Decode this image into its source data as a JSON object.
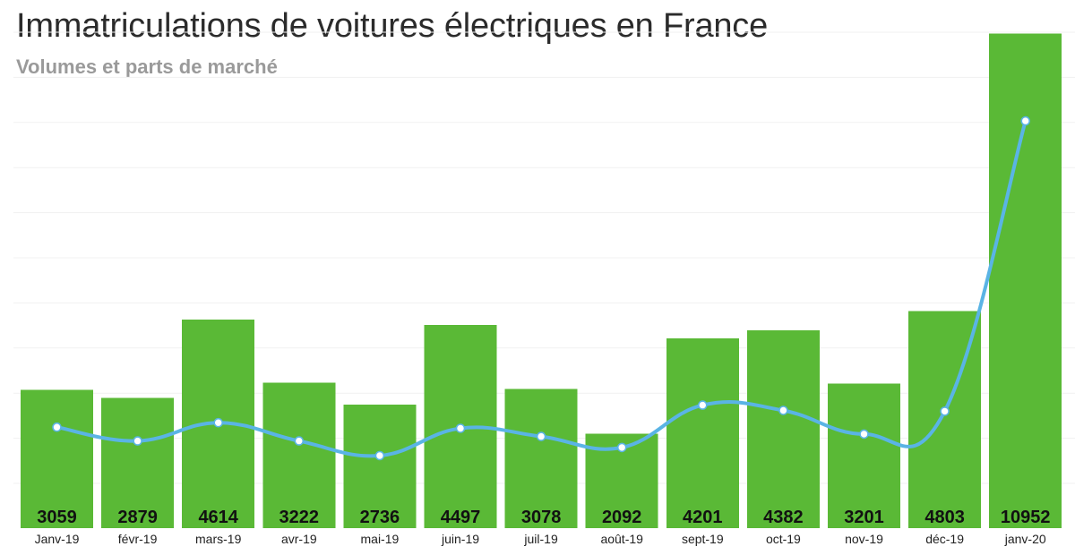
{
  "chart_data": {
    "type": "bar",
    "title": "Immatriculations de voitures électriques en France",
    "subtitle": "Volumes et parts de marché",
    "xlabel": "",
    "ylabel": "",
    "grid": true,
    "ylim": [
      0,
      11000
    ],
    "categories": [
      "Janv-19",
      "févr-19",
      "mars-19",
      "avr-19",
      "mai-19",
      "juin-19",
      "juil-19",
      "août-19",
      "sept-19",
      "oct-19",
      "nov-19",
      "déc-19",
      "janv-20"
    ],
    "series": [
      {
        "name": "Volumes",
        "type": "bar",
        "values": [
          3059,
          2879,
          4614,
          3222,
          2736,
          4497,
          3078,
          2092,
          4201,
          4382,
          3201,
          4803,
          10952
        ],
        "color": "#5ab936"
      },
      {
        "name": "Parts de marché",
        "type": "line",
        "values": [
          2.48,
          2.14,
          2.59,
          2.14,
          1.78,
          2.45,
          2.25,
          1.98,
          3.02,
          2.89,
          2.31,
          2.87,
          10.0
        ],
        "ylim": [
          0,
          12.2
        ],
        "color": "#5ab4e5",
        "marker_fill": "#ffffff"
      }
    ]
  }
}
